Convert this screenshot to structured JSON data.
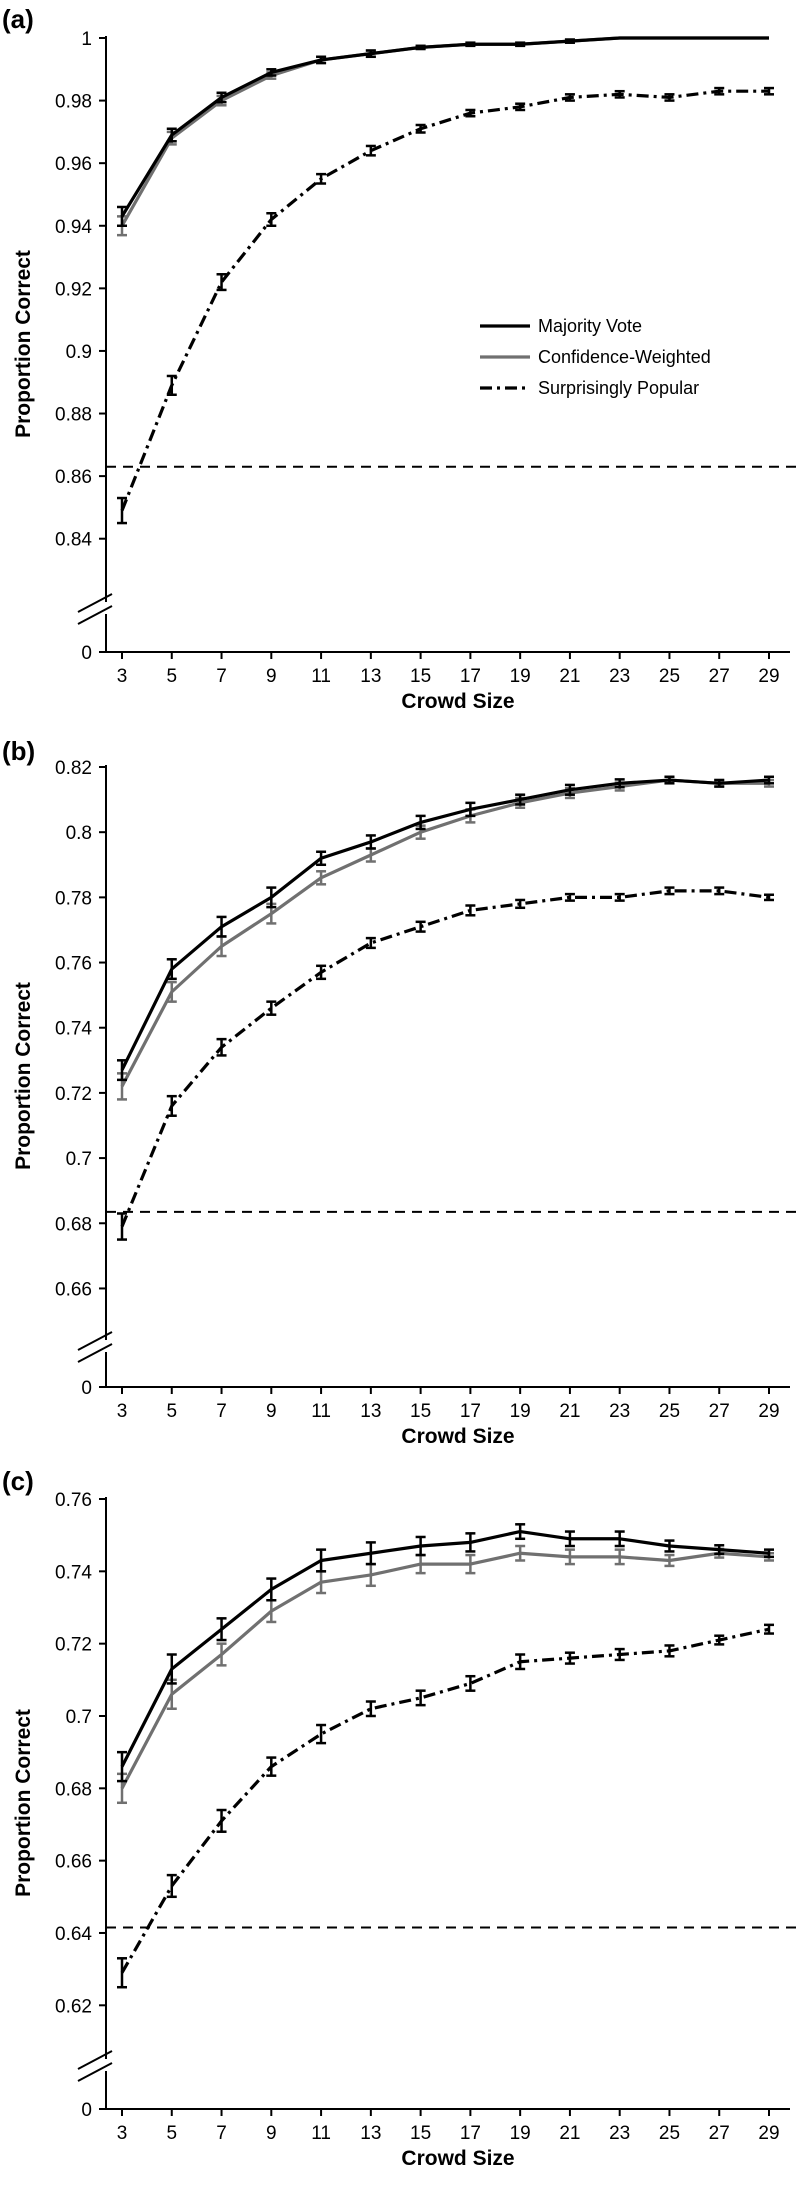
{
  "chart_data": [
    {
      "type": "line",
      "panel_label": "(a)",
      "xlabel": "Crowd Size",
      "ylabel": "Proportion Correct",
      "x": [
        3,
        5,
        7,
        9,
        11,
        13,
        15,
        17,
        19,
        21,
        23,
        25,
        27,
        29
      ],
      "x_tick_labels": [
        "3",
        "5",
        "7",
        "9",
        "11",
        "13",
        "15",
        "17",
        "19",
        "21",
        "23",
        "25",
        "27",
        "29"
      ],
      "xlim": [
        2,
        30
      ],
      "ylim": [
        0.83,
        1.0
      ],
      "y_ticks": [
        0.84,
        0.86,
        0.88,
        0.9,
        0.92,
        0.94,
        0.96,
        0.98,
        1
      ],
      "y_tick_labels": [
        "0.84",
        "0.86",
        "0.88",
        "0.9",
        "0.92",
        "0.94",
        "0.96",
        "0.98",
        "1"
      ],
      "y_zero_label": "0",
      "axis_break": true,
      "baseline": 0.863,
      "grid": false,
      "legend_position": "center-right",
      "series": [
        {
          "name": "Majority Vote",
          "style": "solid",
          "color": "#000000",
          "values": [
            0.943,
            0.969,
            0.981,
            0.989,
            0.993,
            0.995,
            0.997,
            0.998,
            0.998,
            0.999,
            1.0,
            1.0,
            1.0,
            1.0
          ],
          "errors": [
            0.003,
            0.002,
            0.0015,
            0.001,
            0.001,
            0.001,
            0.0005,
            0.0005,
            0.0005,
            0.0005,
            0,
            0,
            0,
            0
          ]
        },
        {
          "name": "Confidence-Weighted",
          "style": "solid",
          "color": "#707070",
          "values": [
            0.94,
            0.968,
            0.98,
            0.988,
            0.993,
            0.995,
            0.997,
            0.998,
            0.998,
            0.999,
            1.0,
            1.0,
            1.0,
            1.0
          ],
          "errors": [
            0.003,
            0.002,
            0.0015,
            0.001,
            0.001,
            0.001,
            0.0005,
            0.0005,
            0.0005,
            0.0005,
            0,
            0,
            0,
            0
          ]
        },
        {
          "name": "Surprisingly Popular",
          "style": "dashdot",
          "color": "#000000",
          "values": [
            0.849,
            0.889,
            0.922,
            0.942,
            0.955,
            0.964,
            0.971,
            0.976,
            0.978,
            0.981,
            0.982,
            0.981,
            0.983,
            0.983
          ],
          "errors": [
            0.004,
            0.003,
            0.0025,
            0.002,
            0.0015,
            0.0015,
            0.0012,
            0.001,
            0.001,
            0.001,
            0.001,
            0.001,
            0.001,
            0.001
          ]
        }
      ]
    },
    {
      "type": "line",
      "panel_label": "(b)",
      "xlabel": "Crowd Size",
      "ylabel": "Proportion Correct",
      "x": [
        3,
        5,
        7,
        9,
        11,
        13,
        15,
        17,
        19,
        21,
        23,
        25,
        27,
        29
      ],
      "x_tick_labels": [
        "3",
        "5",
        "7",
        "9",
        "11",
        "13",
        "15",
        "17",
        "19",
        "21",
        "23",
        "25",
        "27",
        "29"
      ],
      "xlim": [
        2,
        30
      ],
      "ylim": [
        0.654,
        0.82
      ],
      "y_ticks": [
        0.66,
        0.68,
        0.7,
        0.72,
        0.74,
        0.76,
        0.78,
        0.8,
        0.82
      ],
      "y_tick_labels": [
        "0.66",
        "0.68",
        "0.7",
        "0.72",
        "0.74",
        "0.76",
        "0.78",
        "0.8",
        "0.82"
      ],
      "y_zero_label": "0",
      "axis_break": true,
      "baseline": 0.6835,
      "grid": false,
      "series": [
        {
          "name": "Majority Vote",
          "style": "solid",
          "color": "#000000",
          "values": [
            0.727,
            0.758,
            0.771,
            0.78,
            0.792,
            0.797,
            0.803,
            0.807,
            0.81,
            0.813,
            0.815,
            0.816,
            0.815,
            0.816
          ],
          "errors": [
            0.003,
            0.003,
            0.003,
            0.003,
            0.002,
            0.002,
            0.002,
            0.002,
            0.0015,
            0.0015,
            0.0012,
            0.001,
            0.001,
            0.001
          ]
        },
        {
          "name": "Confidence-Weighted",
          "style": "solid",
          "color": "#707070",
          "values": [
            0.722,
            0.751,
            0.765,
            0.775,
            0.786,
            0.793,
            0.8,
            0.805,
            0.809,
            0.812,
            0.814,
            0.816,
            0.815,
            0.815
          ],
          "errors": [
            0.004,
            0.003,
            0.003,
            0.003,
            0.002,
            0.002,
            0.002,
            0.002,
            0.0015,
            0.0015,
            0.0012,
            0.001,
            0.001,
            0.001
          ]
        },
        {
          "name": "Surprisingly Popular",
          "style": "dashdot",
          "color": "#000000",
          "values": [
            0.679,
            0.716,
            0.734,
            0.746,
            0.757,
            0.766,
            0.771,
            0.776,
            0.778,
            0.78,
            0.78,
            0.782,
            0.782,
            0.78
          ],
          "errors": [
            0.004,
            0.003,
            0.0025,
            0.002,
            0.002,
            0.0015,
            0.0015,
            0.0015,
            0.0012,
            0.001,
            0.001,
            0.001,
            0.001,
            0.0008
          ]
        }
      ]
    },
    {
      "type": "line",
      "panel_label": "(c)",
      "xlabel": "Crowd Size",
      "ylabel": "Proportion Correct",
      "x": [
        3,
        5,
        7,
        9,
        11,
        13,
        15,
        17,
        19,
        21,
        23,
        25,
        27,
        29
      ],
      "x_tick_labels": [
        "3",
        "5",
        "7",
        "9",
        "11",
        "13",
        "15",
        "17",
        "19",
        "21",
        "23",
        "25",
        "27",
        "29"
      ],
      "xlim": [
        2,
        30
      ],
      "ylim": [
        0.614,
        0.76
      ],
      "y_ticks": [
        0.62,
        0.64,
        0.66,
        0.68,
        0.7,
        0.72,
        0.74,
        0.76
      ],
      "y_tick_labels": [
        "0.62",
        "0.64",
        "0.66",
        "0.68",
        "0.7",
        "0.72",
        "0.74",
        "0.76"
      ],
      "y_zero_label": "0",
      "axis_break": true,
      "baseline": 0.6415,
      "grid": false,
      "series": [
        {
          "name": "Majority Vote",
          "style": "solid",
          "color": "#000000",
          "values": [
            0.686,
            0.713,
            0.724,
            0.735,
            0.743,
            0.745,
            0.747,
            0.748,
            0.751,
            0.749,
            0.749,
            0.747,
            0.746,
            0.745
          ],
          "errors": [
            0.004,
            0.004,
            0.003,
            0.003,
            0.003,
            0.003,
            0.0025,
            0.0025,
            0.002,
            0.002,
            0.002,
            0.0015,
            0.0012,
            0.001
          ]
        },
        {
          "name": "Confidence-Weighted",
          "style": "solid",
          "color": "#707070",
          "values": [
            0.68,
            0.706,
            0.717,
            0.729,
            0.737,
            0.739,
            0.742,
            0.742,
            0.745,
            0.744,
            0.744,
            0.743,
            0.745,
            0.744
          ],
          "errors": [
            0.004,
            0.004,
            0.003,
            0.003,
            0.003,
            0.003,
            0.0025,
            0.0025,
            0.002,
            0.002,
            0.002,
            0.0015,
            0.0012,
            0.001
          ]
        },
        {
          "name": "Surprisingly Popular",
          "style": "dashdot",
          "color": "#000000",
          "values": [
            0.629,
            0.653,
            0.671,
            0.686,
            0.695,
            0.702,
            0.705,
            0.709,
            0.715,
            0.716,
            0.717,
            0.718,
            0.721,
            0.724
          ],
          "errors": [
            0.004,
            0.003,
            0.003,
            0.0025,
            0.0025,
            0.002,
            0.002,
            0.002,
            0.002,
            0.0015,
            0.0015,
            0.0015,
            0.0012,
            0.0012
          ]
        }
      ]
    }
  ]
}
